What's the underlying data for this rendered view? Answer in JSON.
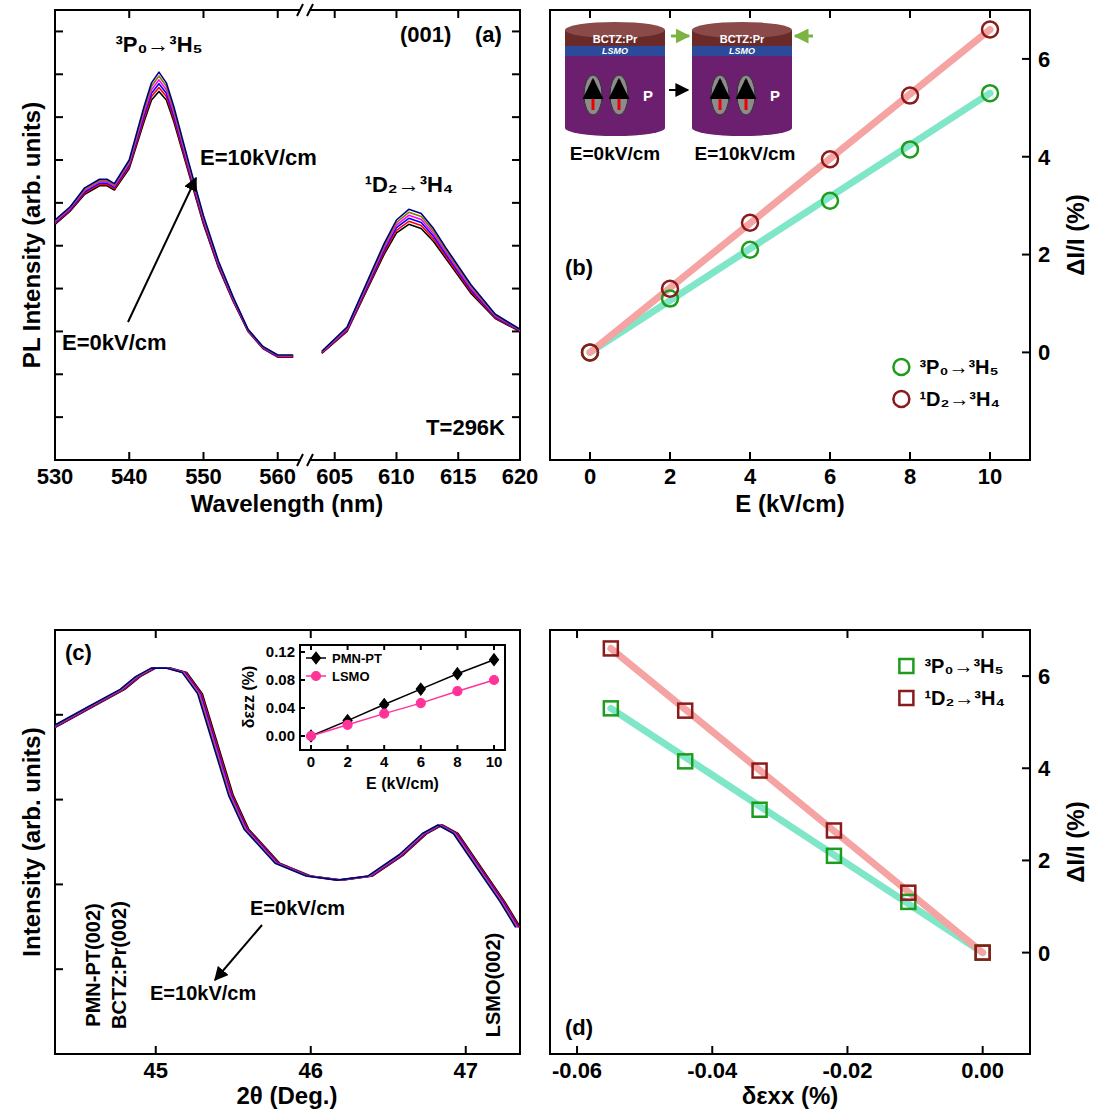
{
  "chart_data": [
    {
      "type": "line",
      "x_label": "Wavelength (nm)",
      "y_label": "PL Intensity (arb. units)",
      "xlim": [
        530,
        563
      ],
      "xticks": [
        530,
        540,
        550,
        560
      ],
      "ylim": [
        0,
        105
      ],
      "yticks": [
        10,
        20,
        30,
        40,
        50,
        60,
        70,
        80,
        90,
        100
      ],
      "tick_labels": "x",
      "x": [
        530,
        532,
        534,
        536,
        537,
        538,
        540,
        542,
        543,
        544,
        545,
        546,
        548,
        550,
        552,
        554,
        556,
        558,
        560,
        562
      ],
      "series": [
        {
          "color": "#000000",
          "values": [
            55,
            58,
            62,
            64,
            64,
            63,
            68,
            79,
            84,
            86,
            84,
            79,
            67,
            55,
            45,
            37,
            30,
            26,
            24,
            24
          ]
        },
        {
          "color": "#ff0000",
          "values": [
            55.2,
            58.2,
            62.3,
            64.3,
            64.3,
            63.3,
            68.4,
            79.7,
            84.8,
            86.9,
            84.8,
            79.7,
            67.5,
            55.4,
            45.3,
            37.2,
            30.1,
            26.1,
            24.1,
            24.1
          ]
        },
        {
          "color": "#0000ff",
          "values": [
            55.4,
            58.4,
            62.6,
            64.6,
            64.6,
            63.6,
            68.8,
            80.4,
            85.6,
            87.8,
            85.6,
            80.4,
            68,
            55.8,
            45.6,
            37.4,
            30.2,
            26.2,
            24.2,
            24.2
          ]
        },
        {
          "color": "#ff00ff",
          "values": [
            55.6,
            58.6,
            62.9,
            64.9,
            64.9,
            63.9,
            69.2,
            81.1,
            86.4,
            88.7,
            86.4,
            81.1,
            68.5,
            56.2,
            45.9,
            37.6,
            30.3,
            26.3,
            24.3,
            24.3
          ]
        },
        {
          "color": "#7f7f00",
          "values": [
            55.8,
            58.8,
            63.2,
            65.2,
            65.2,
            64.2,
            69.6,
            81.8,
            87.2,
            89.6,
            87.2,
            81.8,
            69,
            56.6,
            46.2,
            37.8,
            30.4,
            26.4,
            24.4,
            24.4
          ]
        },
        {
          "color": "#00007f",
          "values": [
            56,
            59,
            63.5,
            65.5,
            65.5,
            64.5,
            70,
            82.5,
            88,
            90.5,
            88,
            82.5,
            69.5,
            57,
            46.5,
            38,
            30.5,
            26.5,
            24.5,
            24.5
          ]
        }
      ],
      "annotations": [
        "³P₀→³H₅",
        "E=10kV/cm",
        "E=0kV/cm"
      ]
    },
    {
      "type": "line",
      "title": "(a)",
      "xlim": [
        603,
        620
      ],
      "xticks": [
        605,
        610,
        615,
        620
      ],
      "ylim": [
        0,
        105
      ],
      "yticks": [
        10,
        20,
        30,
        40,
        50,
        60,
        70,
        80,
        90,
        100
      ],
      "tick_labels": "x",
      "x": [
        604,
        606,
        608,
        609,
        610,
        611,
        612,
        613,
        614,
        616,
        618,
        620
      ],
      "series": [
        {
          "color": "#000000",
          "values": [
            25,
            30,
            42,
            48,
            53,
            55,
            54,
            51,
            47,
            39,
            33,
            30
          ]
        },
        {
          "color": "#ff0000",
          "values": [
            25.1,
            30.2,
            42.4,
            48.5,
            53.6,
            55.7,
            54.7,
            51.6,
            47.5,
            39.4,
            33.2,
            30.1
          ]
        },
        {
          "color": "#0000ff",
          "values": [
            25.2,
            30.4,
            42.8,
            49,
            54.2,
            56.4,
            55.4,
            52.2,
            48,
            39.8,
            33.4,
            30.2
          ]
        },
        {
          "color": "#ff00ff",
          "values": [
            25.3,
            30.6,
            43.2,
            49.5,
            54.8,
            57.1,
            56.1,
            52.8,
            48.5,
            40.2,
            33.6,
            30.3
          ]
        },
        {
          "color": "#7f7f00",
          "values": [
            25.4,
            30.8,
            43.6,
            50,
            55.4,
            57.8,
            56.8,
            53.4,
            49,
            40.6,
            33.8,
            30.4
          ]
        },
        {
          "color": "#00007f",
          "values": [
            25.5,
            31,
            44,
            50.5,
            56,
            58.5,
            57.5,
            54,
            49.5,
            41,
            34,
            30.5
          ]
        }
      ],
      "annotations": [
        "(001)",
        "¹D₂→³H₄",
        "T=296K"
      ]
    },
    {
      "type": "scatter",
      "title": "(b)",
      "x_label": "E (kV/cm)",
      "y_label": "ΔI/I (%)",
      "xlim": [
        -1,
        11
      ],
      "xticks": [
        0,
        2,
        4,
        6,
        8,
        10
      ],
      "ylim": [
        -2.2,
        7
      ],
      "yticks": [
        0,
        2,
        4,
        6
      ],
      "legend": "lower right",
      "series": [
        {
          "type": "line",
          "line_style": "thick",
          "color": "#80e6c8",
          "x": [
            0,
            10
          ],
          "values": [
            0,
            5.3
          ]
        },
        {
          "type": "line",
          "line_style": "thick",
          "color": "#f5a3a3",
          "x": [
            0,
            10
          ],
          "values": [
            0,
            6.6
          ]
        },
        {
          "name": "³P₀→³H₅",
          "color": "#1e9c1e",
          "marker": "open-circle",
          "x": [
            0,
            2,
            4,
            6,
            8,
            10
          ],
          "values": [
            0,
            1.1,
            2.1,
            3.1,
            4.15,
            5.3
          ]
        },
        {
          "name": "¹D₂→³H₄",
          "color": "#8b1a1a",
          "marker": "open-circle",
          "x": [
            0,
            2,
            4,
            6,
            8,
            10
          ],
          "values": [
            0,
            1.3,
            2.65,
            3.95,
            5.25,
            6.6
          ]
        }
      ],
      "schematic": {
        "top_layer": "BCTZ:Pr",
        "bottom_layer": "LSMO",
        "polarization": "P",
        "left": "E=0kV/cm",
        "right": "E=10kV/cm"
      }
    },
    {
      "type": "line",
      "title": "(c)",
      "x_label": "2θ (Deg.)",
      "y_label": "Intensity (arb. units)",
      "xlim": [
        44.35,
        47.35
      ],
      "xticks": [
        45,
        46,
        47
      ],
      "ylim": [
        0,
        100
      ],
      "yticks": [
        20,
        40,
        60,
        80
      ],
      "tick_labels": "x",
      "series": [
        {
          "color": "#000000",
          "x": [
            44.35,
            44.6,
            44.8,
            44.9,
            45.0,
            45.1,
            45.2,
            45.3,
            45.4,
            45.5,
            45.6,
            45.8,
            46.0,
            46.2,
            46.4,
            46.6,
            46.75,
            46.85,
            46.95,
            47.1,
            47.25,
            47.35
          ],
          "values": [
            77,
            82,
            86,
            89,
            91,
            91,
            90,
            85,
            73,
            61,
            53,
            45,
            42,
            41,
            42,
            47,
            52,
            54,
            52,
            44,
            36,
            30
          ]
        },
        {
          "color": "#ff0000",
          "x": [
            44.344,
            44.594,
            44.794,
            44.894,
            44.994,
            45.094,
            45.194,
            45.294,
            45.394,
            45.494,
            45.594,
            45.794,
            45.994,
            46.194,
            46.394,
            46.594,
            46.744,
            46.844,
            46.944,
            47.094,
            47.244,
            47.344
          ],
          "values": [
            77,
            82,
            86,
            89,
            91,
            91,
            90,
            85,
            73,
            61,
            53,
            45,
            42,
            41,
            42,
            47,
            52,
            54,
            52,
            44,
            36,
            30
          ]
        },
        {
          "color": "#0000ff",
          "x": [
            44.338,
            44.588,
            44.788,
            44.888,
            44.988,
            45.088,
            45.188,
            45.288,
            45.388,
            45.488,
            45.588,
            45.788,
            45.988,
            46.188,
            46.388,
            46.588,
            46.738,
            46.838,
            46.938,
            47.088,
            47.238,
            47.338
          ],
          "values": [
            77,
            82,
            86,
            89,
            91,
            91,
            90,
            85,
            73,
            61,
            53,
            45,
            42,
            41,
            42,
            47,
            52,
            54,
            52,
            44,
            36,
            30
          ]
        },
        {
          "color": "#ff00ff",
          "x": [
            44.332,
            44.582,
            44.782,
            44.882,
            44.982,
            45.082,
            45.182,
            45.282,
            45.382,
            45.482,
            45.582,
            45.782,
            45.982,
            46.182,
            46.382,
            46.582,
            46.732,
            46.832,
            46.932,
            47.082,
            47.232,
            47.332
          ],
          "values": [
            77,
            82,
            86,
            89,
            91,
            91,
            90,
            85,
            73,
            61,
            53,
            45,
            42,
            41,
            42,
            47,
            52,
            54,
            52,
            44,
            36,
            30
          ]
        },
        {
          "color": "#7f7f00",
          "x": [
            44.326,
            44.576,
            44.776,
            44.876,
            44.976,
            45.076,
            45.176,
            45.276,
            45.376,
            45.476,
            45.576,
            45.776,
            45.976,
            46.176,
            46.376,
            46.576,
            46.726,
            46.826,
            46.926,
            47.076,
            47.226,
            47.326
          ],
          "values": [
            77,
            82,
            86,
            89,
            91,
            91,
            90,
            85,
            73,
            61,
            53,
            45,
            42,
            41,
            42,
            47,
            52,
            54,
            52,
            44,
            36,
            30
          ]
        },
        {
          "color": "#00007f",
          "x": [
            44.32,
            44.57,
            44.77,
            44.87,
            44.97,
            45.07,
            45.17,
            45.27,
            45.37,
            45.47,
            45.57,
            45.77,
            45.97,
            46.17,
            46.37,
            46.57,
            46.72,
            46.82,
            46.92,
            47.07,
            47.22,
            47.32
          ],
          "values": [
            77,
            82,
            86,
            89,
            91,
            91,
            90,
            85,
            73,
            61,
            53,
            45,
            42,
            41,
            42,
            47,
            52,
            54,
            52,
            44,
            36,
            30
          ]
        }
      ],
      "annotations": [
        "PMN-PT(002)",
        "BCTZ:Pr(002)",
        "LSMO(002)",
        "E=0kV/cm",
        "E=10kV/cm"
      ]
    },
    {
      "type": "line",
      "x_label": "E (kV/cm)",
      "y_label": "δεzz (%)",
      "xlim": [
        -0.6,
        10.6
      ],
      "xticks": [
        0,
        2,
        4,
        6,
        8,
        10
      ],
      "ylim": [
        -0.02,
        0.13
      ],
      "yticks": [
        {
          "value": 0,
          "label": "0.00"
        },
        0.04,
        0.08,
        0.12
      ],
      "legend": "upper left",
      "x": [
        0,
        2,
        4,
        6,
        8,
        10
      ],
      "series": [
        {
          "name": "PMN-PT",
          "color": "#000000",
          "marker": "diamond",
          "values": [
            0,
            0.022,
            0.045,
            0.067,
            0.089,
            0.109
          ]
        },
        {
          "name": "LSMO",
          "color": "#ff3399",
          "marker": "circle",
          "values": [
            0,
            0.016,
            0.032,
            0.047,
            0.064,
            0.08
          ]
        }
      ]
    },
    {
      "type": "scatter",
      "title": "(d)",
      "x_label": "δεxx (%)",
      "y_label": "ΔI/I (%)",
      "xlim": [
        -0.064,
        0.007
      ],
      "xticks": [
        -0.06,
        -0.04,
        -0.02,
        {
          "value": 0,
          "label": "0.00"
        }
      ],
      "ylim": [
        -2.2,
        7
      ],
      "yticks": [
        0,
        2,
        4,
        6
      ],
      "legend": "upper right",
      "series": [
        {
          "type": "line",
          "line_style": "thick",
          "color": "#80e6c8",
          "x": [
            -0.055,
            0
          ],
          "values": [
            5.3,
            0
          ]
        },
        {
          "type": "line",
          "line_style": "thick",
          "color": "#f5a3a3",
          "x": [
            -0.055,
            0
          ],
          "values": [
            6.6,
            0
          ]
        },
        {
          "name": "³P₀→³H₅",
          "color": "#1e9c1e",
          "marker": "open-square",
          "x": [
            -0.055,
            -0.044,
            -0.033,
            -0.022,
            -0.011,
            0
          ],
          "values": [
            5.3,
            4.15,
            3.1,
            2.1,
            1.1,
            0
          ]
        },
        {
          "name": "¹D₂→³H₄",
          "color": "#8b1a1a",
          "marker": "open-square",
          "x": [
            -0.055,
            -0.044,
            -0.033,
            -0.022,
            -0.011,
            0
          ],
          "values": [
            6.6,
            5.25,
            3.95,
            2.65,
            1.3,
            0
          ]
        }
      ]
    }
  ]
}
